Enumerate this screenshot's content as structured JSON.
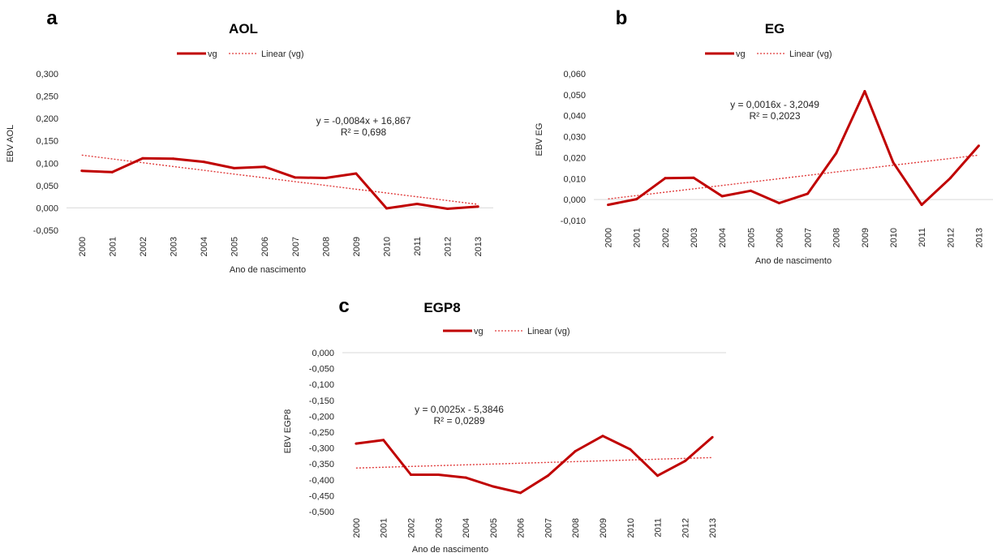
{
  "chart_data": [
    {
      "panel_letter": "a",
      "type": "line",
      "title": "AOL",
      "xlabel": "Ano de nascimento",
      "ylabel": "EBV AOL",
      "categories": [
        "2000",
        "2001",
        "2002",
        "2003",
        "2004",
        "2005",
        "2006",
        "2007",
        "2008",
        "2009",
        "2010",
        "2011",
        "2012",
        "2013"
      ],
      "ylim": [
        -0.05,
        0.3
      ],
      "yticks": [
        -0.05,
        0.0,
        0.05,
        0.1,
        0.15,
        0.2,
        0.25,
        0.3
      ],
      "ytick_labels": [
        "-0,050",
        "0,000",
        "0,050",
        "0,100",
        "0,150",
        "0,200",
        "0,250",
        "0,300"
      ],
      "series": [
        {
          "name": "vg",
          "values": [
            0.083,
            0.08,
            0.111,
            0.11,
            0.103,
            0.089,
            0.092,
            0.068,
            0.067,
            0.077,
            -0.001,
            0.009,
            -0.002,
            0.003
          ]
        }
      ],
      "trendline": {
        "name": "Linear (vg)",
        "start": 0.118,
        "end": 0.008
      },
      "equation": "y = -0,0084x + 16,867",
      "r_squared": "R² = 0,698",
      "legend": "top",
      "colors": {
        "series": "#c00000",
        "trend": "#e03a3a",
        "axis": "#d9d9d9"
      }
    },
    {
      "panel_letter": "b",
      "type": "line",
      "title": "EG",
      "xlabel": "Ano de nascimento",
      "ylabel": "EBV EG",
      "categories": [
        "2000",
        "2001",
        "2002",
        "2003",
        "2004",
        "2005",
        "2006",
        "2007",
        "2008",
        "2009",
        "2010",
        "2011",
        "2012",
        "2013"
      ],
      "ylim": [
        -0.01,
        0.06
      ],
      "yticks": [
        -0.01,
        0.0,
        0.01,
        0.02,
        0.03,
        0.04,
        0.05,
        0.06
      ],
      "ytick_labels": [
        "-0,010",
        "0,000",
        "0,010",
        "0,020",
        "0,030",
        "0,040",
        "0,050",
        "0,060"
      ],
      "series": [
        {
          "name": "vg",
          "values": [
            -0.0025,
            0.0002,
            0.0102,
            0.0104,
            0.0016,
            0.0042,
            -0.0017,
            0.0028,
            0.0221,
            0.0517,
            0.0177,
            -0.0025,
            0.0102,
            0.0257
          ]
        }
      ],
      "trendline": {
        "name": "Linear (vg)",
        "start": 0.0003,
        "end": 0.0212
      },
      "equation": "y = 0,0016x - 3,2049",
      "r_squared": "R² = 0,2023",
      "legend": "top",
      "colors": {
        "series": "#c00000",
        "trend": "#e03a3a",
        "axis": "#d9d9d9"
      }
    },
    {
      "panel_letter": "c",
      "type": "line",
      "title": "EGP8",
      "xlabel": "Ano de nascimento",
      "ylabel": "EBV EGP8",
      "categories": [
        "2000",
        "2001",
        "2002",
        "2003",
        "2004",
        "2005",
        "2006",
        "2007",
        "2008",
        "2009",
        "2010",
        "2011",
        "2012",
        "2013"
      ],
      "ylim": [
        -0.5,
        0.0
      ],
      "yticks": [
        -0.5,
        -0.45,
        -0.4,
        -0.35,
        -0.3,
        -0.25,
        -0.2,
        -0.15,
        -0.1,
        -0.05,
        0.0
      ],
      "ytick_labels": [
        "-0,500",
        "-0,450",
        "-0,400",
        "-0,350",
        "-0,300",
        "-0,250",
        "-0,200",
        "-0,150",
        "-0,100",
        "-0,050",
        "0,000"
      ],
      "series": [
        {
          "name": "vg",
          "values": [
            -0.286,
            -0.275,
            -0.384,
            -0.384,
            -0.393,
            -0.421,
            -0.441,
            -0.387,
            -0.31,
            -0.262,
            -0.304,
            -0.387,
            -0.341,
            -0.266
          ]
        }
      ],
      "trendline": {
        "name": "Linear (vg)",
        "start": -0.363,
        "end": -0.33
      },
      "equation": "y = 0,0025x - 5,3846",
      "r_squared": "R² = 0,0289",
      "legend": "top",
      "colors": {
        "series": "#c00000",
        "trend": "#e03a3a",
        "axis": "#d9d9d9"
      }
    }
  ]
}
